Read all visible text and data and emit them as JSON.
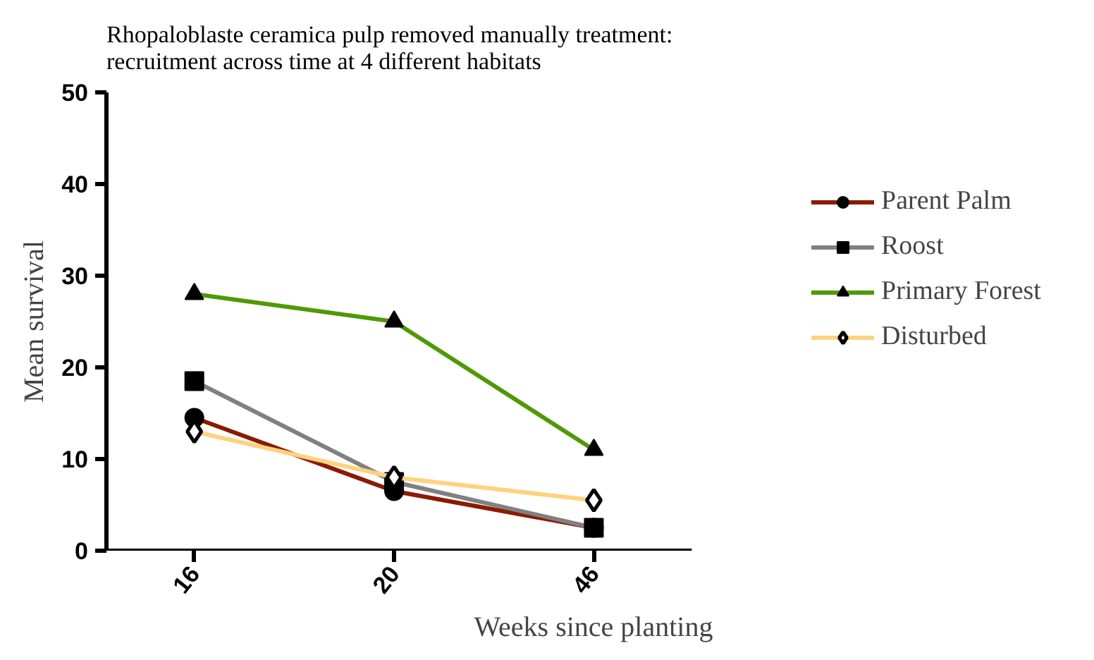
{
  "chart_data": {
    "type": "line",
    "title": "Rhopaloblaste ceramica pulp removed manually treatment:\nrecruitment across time at 4 different habitats",
    "xlabel": "Weeks since planting",
    "ylabel": "Mean survival",
    "categories": [
      "16",
      "20",
      "46"
    ],
    "series": [
      {
        "name": "Parent Palm",
        "color": "#8b1a00",
        "marker": "circle",
        "values": [
          14.5,
          6.5,
          2.5
        ]
      },
      {
        "name": "Roost",
        "color": "#808080",
        "marker": "square",
        "values": [
          18.5,
          7.5,
          2.5
        ]
      },
      {
        "name": "Primary Forest",
        "color": "#4e9a06",
        "marker": "triangle",
        "values": [
          28,
          25,
          11
        ]
      },
      {
        "name": "Disturbed",
        "color": "#ffd27f",
        "marker": "diamond",
        "values": [
          13,
          8,
          5.5
        ]
      }
    ],
    "ylim": [
      0,
      50
    ],
    "yticks": [
      0,
      10,
      20,
      30,
      40,
      50
    ],
    "grid": false,
    "legend": "right"
  }
}
